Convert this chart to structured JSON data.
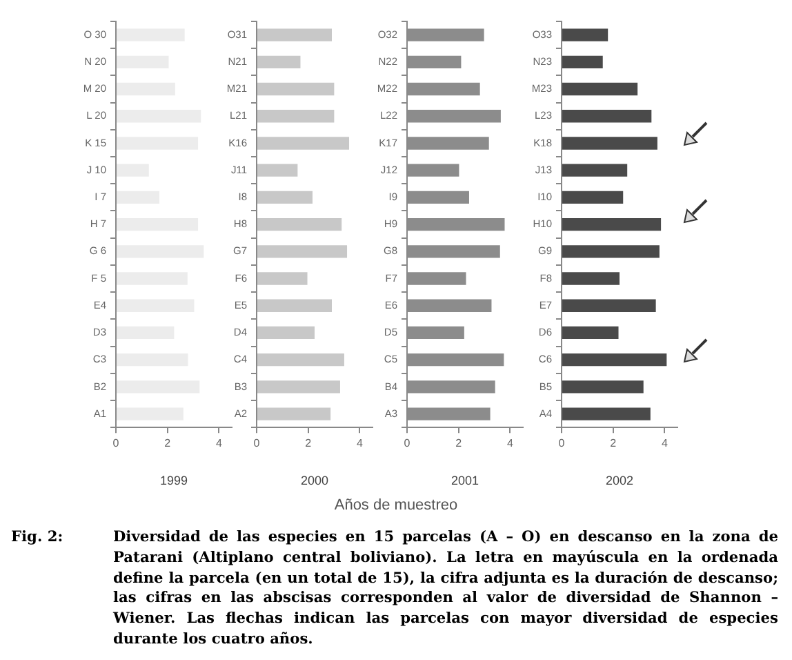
{
  "chart_data": [
    {
      "type": "bar",
      "orientation": "horizontal",
      "xlabel": "1999",
      "categories": [
        "O 30",
        "N 20",
        "M 20",
        "L 20",
        "K 15",
        "J 10",
        "I 7",
        "H 7",
        "G 6",
        "F 5",
        "E4",
        "D3",
        "C3",
        "B2",
        "A1"
      ],
      "values": [
        2.67,
        2.05,
        2.3,
        3.3,
        3.19,
        1.28,
        1.69,
        3.19,
        3.41,
        2.78,
        3.04,
        2.26,
        2.8,
        3.25,
        2.62
      ],
      "color": "#ececec",
      "xlim": [
        0,
        4.5
      ],
      "xticks": [
        0,
        2,
        4
      ],
      "grid": false,
      "legend": false,
      "annotations": [
        "Años de muestreo",
        "Fig. 2:",
        "Diversidad de las especies en 15 parcelas (A – O) en descanso en la zona de Patarani (Altiplano central boliviano). La letra en mayúscula en la ordenada define la parcela (en un total de 15), la cifra adjunta es la duración de descanso; las cifras en las abscisas corresponden al valor de diversidad de Shannon – Wiener. Las flechas indican las parcelas con mayor diversidad de especies durante los cuatro años."
      ]
    },
    {
      "type": "bar",
      "orientation": "horizontal",
      "xlabel": "2000",
      "categories": [
        "O31",
        "N21",
        "M21",
        "L21",
        "K16",
        "J11",
        "I8",
        "H8",
        "G7",
        "F6",
        "E5",
        "D4",
        "C4",
        "B3",
        "A2"
      ],
      "values": [
        2.92,
        1.7,
        3.01,
        3.01,
        3.59,
        1.59,
        2.17,
        3.3,
        3.51,
        1.97,
        2.92,
        2.25,
        3.4,
        3.24,
        2.87
      ],
      "color": "#c8c8c8",
      "xlim": [
        0,
        4.5
      ],
      "xticks": [
        0,
        2,
        4
      ],
      "grid": false,
      "legend": false
    },
    {
      "type": "bar",
      "orientation": "horizontal",
      "xlabel": "2001",
      "categories": [
        "O32",
        "N22",
        "M22",
        "L22",
        "K17",
        "J12",
        "I9",
        "H9",
        "G8",
        "F7",
        "E6",
        "D5",
        "C5",
        "B4",
        "A3"
      ],
      "values": [
        2.99,
        2.1,
        2.83,
        3.64,
        3.18,
        2.02,
        2.41,
        3.79,
        3.61,
        2.29,
        3.28,
        2.22,
        3.76,
        3.42,
        3.23
      ],
      "color": "#8c8c8c",
      "xlim": [
        0,
        4.5
      ],
      "xticks": [
        0,
        2,
        4
      ],
      "grid": false,
      "legend": false
    },
    {
      "type": "bar",
      "orientation": "horizontal",
      "xlabel": "2002",
      "categories": [
        "O33",
        "N23",
        "M23",
        "L23",
        "K18",
        "J13",
        "I10",
        "H10",
        "G9",
        "F8",
        "E7",
        "D6",
        "C6",
        "B5",
        "A4"
      ],
      "values": [
        1.8,
        1.6,
        2.95,
        3.49,
        3.72,
        2.55,
        2.39,
        3.86,
        3.8,
        2.25,
        3.66,
        2.21,
        4.08,
        3.18,
        3.45
      ],
      "color": "#4a4a4a",
      "xlim": [
        0,
        4.5
      ],
      "xticks": [
        0,
        2,
        4
      ],
      "grid": false,
      "legend": false
    }
  ]
}
